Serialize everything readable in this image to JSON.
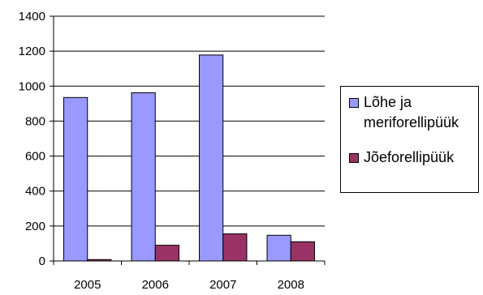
{
  "chart_data": {
    "type": "bar",
    "categories": [
      "2005",
      "2006",
      "2007",
      "2008"
    ],
    "series": [
      {
        "name": "Lõhe ja meriforellipüük",
        "color": "#9999ff",
        "values": [
          935,
          962,
          1178,
          147
        ]
      },
      {
        "name": "Jõeforellipüük",
        "color": "#993366",
        "values": [
          8,
          90,
          155,
          110
        ]
      }
    ],
    "ylim": [
      0,
      1400
    ],
    "yticks": [
      0,
      200,
      400,
      600,
      800,
      1000,
      1200,
      1400
    ],
    "grid": true,
    "legend_position": "right",
    "title": "",
    "xlabel": "",
    "ylabel": ""
  }
}
